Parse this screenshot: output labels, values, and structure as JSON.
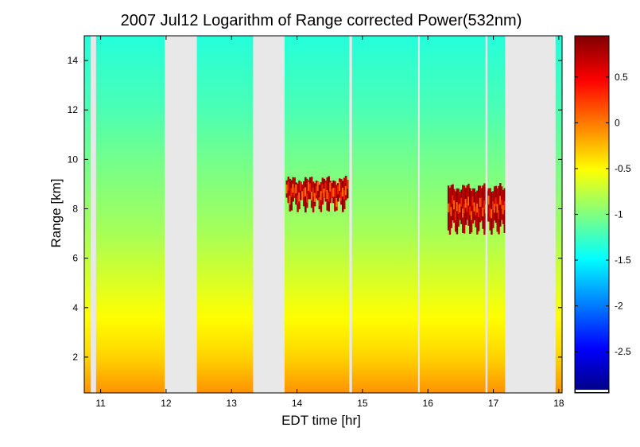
{
  "chart_data": {
    "type": "heatmap",
    "title": "2007 Jul12  Logarithm of Range corrected Power(532nm)",
    "xlabel": "EDT time [hr]",
    "ylabel": "Range [km]",
    "xlim": [
      10.75,
      18.05
    ],
    "ylim": [
      0.55,
      15.0
    ],
    "x_ticks": [
      11,
      12,
      13,
      14,
      15,
      16,
      17,
      18
    ],
    "y_ticks": [
      2,
      4,
      6,
      8,
      10,
      12,
      14
    ],
    "colorbar": {
      "clim": [
        -2.95,
        0.95
      ],
      "ticks": [
        0.5,
        0,
        -0.5,
        -1,
        -1.5,
        -2,
        -2.5
      ],
      "colormap": "jet"
    },
    "no_data_color": "#e8e8e8",
    "no_data_gaps": [
      {
        "start": 10.85,
        "end": 10.93
      },
      {
        "start": 11.98,
        "end": 12.47
      },
      {
        "start": 13.33,
        "end": 13.81
      },
      {
        "start": 14.8,
        "end": 14.84
      },
      {
        "start": 15.85,
        "end": 15.87
      },
      {
        "start": 16.88,
        "end": 16.91
      },
      {
        "start": 17.18,
        "end": 17.95
      }
    ],
    "cloud_layers": [
      {
        "start": 13.83,
        "end": 14.78,
        "base_km": 8.0,
        "top_km": 9.4,
        "value": 0.9
      },
      {
        "start": 16.3,
        "end": 17.18,
        "base_km": 7.1,
        "top_km": 9.1,
        "value": 0.9
      }
    ],
    "profile": [
      {
        "range_km": 0.6,
        "value": -0.1
      },
      {
        "range_km": 2.0,
        "value": -0.35
      },
      {
        "range_km": 4.0,
        "value": -0.55
      },
      {
        "range_km": 7.0,
        "value": -0.85
      },
      {
        "range_km": 10.0,
        "value": -1.05
      },
      {
        "range_km": 12.0,
        "value": -1.2
      },
      {
        "range_km": 15.0,
        "value": -1.35
      }
    ]
  }
}
